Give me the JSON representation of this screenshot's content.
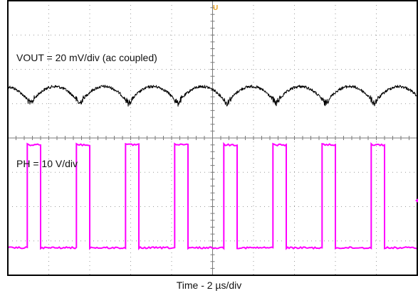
{
  "chart_data": {
    "type": "line",
    "title": "",
    "xlabel": "Time - 2 µs/div",
    "ylabel": "",
    "grid": true,
    "grid_divisions": {
      "x": 10,
      "y": 8
    },
    "x_unit": "µs",
    "x_per_div": 2,
    "xlim": [
      0,
      20
    ],
    "trigger_marker": "U",
    "switching_period_us": 2.4,
    "series": [
      {
        "name": "VOUT = 20 mV/div (ac coupled)",
        "color": "#000000",
        "volts_per_div": "20 mV/div",
        "coupling": "ac",
        "waveform": "ripple",
        "ripple_pk_pk_mV": 20,
        "ripple_period_us": 2.4
      },
      {
        "name": "PH = 10 V/div",
        "color": "#ff00ff",
        "volts_per_div": "10 V/div",
        "waveform": "square",
        "high_level_V": 30,
        "low_level_V": 0,
        "period_us": 2.4,
        "pulse_width_us": 0.65,
        "rising_edges_us": [
          0.95,
          3.35,
          5.75,
          8.15,
          10.55,
          12.95,
          15.35,
          17.75
        ]
      }
    ]
  }
}
